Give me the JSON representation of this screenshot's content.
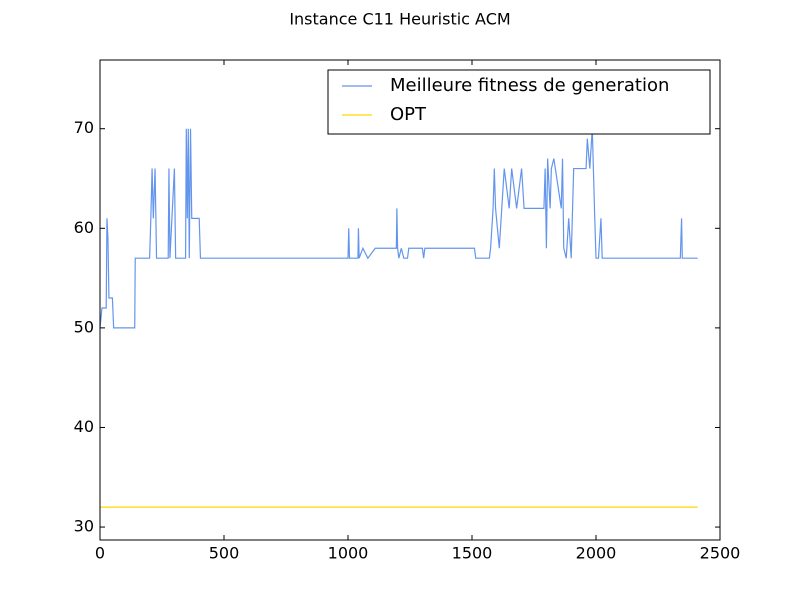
{
  "chart_data": {
    "type": "line",
    "title": "Instance C11 Heuristic ACM",
    "xlim": [
      0,
      2500
    ],
    "xticks": [
      0,
      500,
      1000,
      1500,
      2000,
      2500
    ],
    "ylim": [
      28.7,
      76.9
    ],
    "yticks": [
      30,
      40,
      50,
      60,
      70
    ],
    "grid": false,
    "legend": "upper right",
    "series": [
      {
        "name": "Meilleure fitness de generation",
        "color": "#6495ed",
        "x": [
          0,
          8,
          25,
          28,
          32,
          36,
          50,
          55,
          140,
          142,
          200,
          205,
          210,
          215,
          222,
          228,
          275,
          278,
          282,
          300,
          305,
          345,
          348,
          352,
          356,
          360,
          365,
          370,
          400,
          405,
          1000,
          1003,
          1006,
          1040,
          1042,
          1045,
          1060,
          1080,
          1110,
          1195,
          1197,
          1200,
          1205,
          1215,
          1225,
          1240,
          1245,
          1300,
          1305,
          1310,
          1510,
          1515,
          1570,
          1575,
          1585,
          1590,
          1595,
          1610,
          1630,
          1650,
          1660,
          1680,
          1700,
          1710,
          1790,
          1795,
          1800,
          1805,
          1815,
          1820,
          1830,
          1860,
          1865,
          1870,
          1880,
          1890,
          1900,
          1910,
          1960,
          1965,
          1975,
          1985,
          1995,
          2000,
          2010,
          2020,
          2025,
          2340,
          2345,
          2348,
          2410
        ],
        "values": [
          50,
          52,
          52,
          61,
          59,
          53,
          53,
          50,
          50,
          57,
          57,
          61,
          66,
          61,
          66,
          57,
          57,
          66,
          57,
          66,
          57,
          57,
          70,
          61,
          70,
          57,
          70,
          61,
          61,
          57,
          57,
          60,
          57,
          57,
          60,
          57,
          58,
          57,
          58,
          58,
          62,
          58,
          57,
          58,
          57,
          57,
          58,
          58,
          57,
          58,
          58,
          57,
          57,
          58,
          62,
          66,
          62,
          58,
          66,
          62,
          66,
          62,
          66,
          62,
          62,
          66,
          58,
          67,
          62,
          66,
          67,
          62,
          67,
          58,
          57,
          61,
          57,
          66,
          66,
          69,
          66,
          70,
          61,
          57,
          57,
          61,
          57,
          57,
          61,
          57,
          57
        ]
      },
      {
        "name": "OPT",
        "color": "#ffd700",
        "x": [
          0,
          2410
        ],
        "values": [
          32,
          32
        ]
      }
    ]
  }
}
